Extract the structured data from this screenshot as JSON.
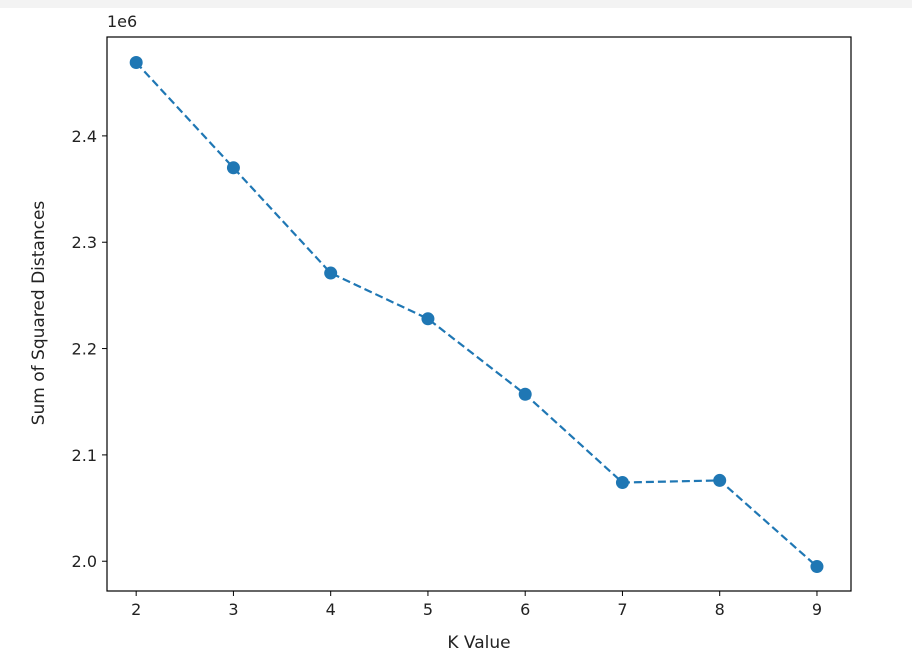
{
  "chart_data": {
    "type": "line",
    "x": [
      2,
      3,
      4,
      5,
      6,
      7,
      8,
      9
    ],
    "series": [
      {
        "values": [
          2.469,
          2.37,
          2.271,
          2.228,
          2.157,
          2.074,
          2.076,
          1.995
        ],
        "color": "#1f77b4",
        "line_style": "dashed",
        "marker": "circle"
      }
    ],
    "xlabel": "K Value",
    "ylabel": "Sum of Squared Distances",
    "y_offset_label": "1e6",
    "xlim": [
      1.7,
      9.35
    ],
    "ylim": [
      1.972,
      2.493
    ],
    "xticks": [
      2,
      3,
      4,
      5,
      6,
      7,
      8,
      9
    ],
    "xtick_labels": [
      "2",
      "3",
      "4",
      "5",
      "6",
      "7",
      "8",
      "9"
    ],
    "yticks": [
      2.0,
      2.1,
      2.2,
      2.3,
      2.4
    ],
    "ytick_labels": [
      "2.0",
      "2.1",
      "2.2",
      "2.3",
      "2.4"
    ],
    "grid": false
  }
}
